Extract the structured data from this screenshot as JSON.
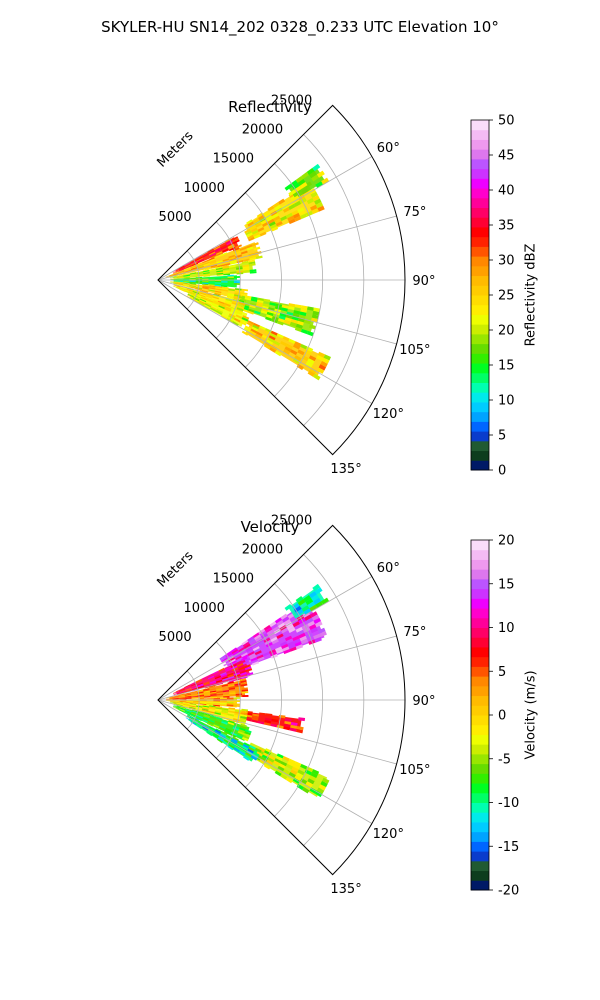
{
  "figure_title": "SKYLER-HU  SN14_202  0328_0.233 UTC Elevation 10°",
  "chart_data": [
    {
      "type": "heatmap",
      "projection": "polar-sector",
      "title": "Reflectivity",
      "range_label": "Meters",
      "range_ticks": [
        5000,
        10000,
        15000,
        20000,
        25000
      ],
      "range_tick_labels": [
        "5000",
        "10000",
        "15000",
        "20000",
        "25000"
      ],
      "range_max": 30000,
      "azimuth_range": [
        45,
        135
      ],
      "azimuth_ticks": [
        60,
        75,
        90,
        105,
        120,
        135
      ],
      "azimuth_tick_labels": [
        "60°",
        "75°",
        "90°",
        "105°",
        "120°",
        "135°"
      ],
      "grid": true,
      "colorbar": {
        "label": "Reflectivity dBZ",
        "vmin": 0,
        "vmax": 50,
        "ticks": [
          "0",
          "5",
          "10",
          "15",
          "20",
          "25",
          "30",
          "35",
          "40",
          "45",
          "50"
        ],
        "colors": [
          "#001a66",
          "#0d3d1e",
          "#205a32",
          "#0a3ccc",
          "#0066ff",
          "#00a3ff",
          "#00ccff",
          "#00eaea",
          "#00ffb0",
          "#00ff66",
          "#00ff22",
          "#33ee00",
          "#66dd00",
          "#99e600",
          "#ccee00",
          "#eeff00",
          "#ffee00",
          "#ffdd00",
          "#ffcc00",
          "#ffbb00",
          "#ffa000",
          "#ff8800",
          "#ff5500",
          "#ff2200",
          "#ff0000",
          "#ff0033",
          "#ff0066",
          "#ff0099",
          "#ff00cc",
          "#ee00ff",
          "#cc33ff",
          "#bb55ff",
          "#dd77ee",
          "#ee99ee",
          "#f4bbf4",
          "#f9ddf9"
        ]
      },
      "echo_regions": [
        {
          "az": [
            57,
            67
          ],
          "r": [
            12000,
            22000
          ],
          "value": 24
        },
        {
          "az": [
            54,
            60
          ],
          "r": [
            19000,
            24000
          ],
          "value": 18
        },
        {
          "az": [
            60,
            68
          ],
          "r": [
            2000,
            11000
          ],
          "value": 33
        },
        {
          "az": [
            68,
            78
          ],
          "r": [
            1000,
            13000
          ],
          "value": 26
        },
        {
          "az": [
            78,
            86
          ],
          "r": [
            1500,
            12000
          ],
          "value": 20
        },
        {
          "az": [
            86,
            96
          ],
          "r": [
            1500,
            10000
          ],
          "value": 15
        },
        {
          "az": [
            96,
            104
          ],
          "r": [
            1500,
            11000
          ],
          "value": 24
        },
        {
          "az": [
            100,
            110
          ],
          "r": [
            10000,
            20000
          ],
          "value": 19
        },
        {
          "az": [
            104,
            114
          ],
          "r": [
            2000,
            11000
          ],
          "value": 23
        },
        {
          "az": [
            114,
            122
          ],
          "r": [
            12000,
            23000
          ],
          "value": 25
        },
        {
          "az": [
            110,
            120
          ],
          "r": [
            4000,
            12000
          ],
          "value": 22
        }
      ]
    },
    {
      "type": "heatmap",
      "projection": "polar-sector",
      "title": "Velocity",
      "range_label": "Meters",
      "range_ticks": [
        5000,
        10000,
        15000,
        20000,
        25000
      ],
      "range_tick_labels": [
        "5000",
        "10000",
        "15000",
        "20000",
        "25000"
      ],
      "range_max": 30000,
      "azimuth_range": [
        45,
        135
      ],
      "azimuth_ticks": [
        60,
        75,
        90,
        105,
        120,
        135
      ],
      "azimuth_tick_labels": [
        "60°",
        "75°",
        "90°",
        "105°",
        "120°",
        "135°"
      ],
      "grid": true,
      "colorbar": {
        "label": "Velocity (m/s)",
        "vmin": -20,
        "vmax": 20,
        "ticks": [
          "-20",
          "-15",
          "-10",
          "-5",
          "0",
          "5",
          "10",
          "15",
          "20"
        ],
        "colors": [
          "#001a66",
          "#0d3d1e",
          "#205a32",
          "#0a3ccc",
          "#0066ff",
          "#00a3ff",
          "#00ccff",
          "#00eaea",
          "#00ffb0",
          "#00ff66",
          "#00ff22",
          "#33ee00",
          "#66dd00",
          "#99e600",
          "#ccee00",
          "#eeff00",
          "#ffee00",
          "#ffdd00",
          "#ffcc00",
          "#ffbb00",
          "#ffa000",
          "#ff8800",
          "#ff5500",
          "#ff2200",
          "#ff0000",
          "#ff0033",
          "#ff0066",
          "#ff0099",
          "#ff00cc",
          "#ee00ff",
          "#cc33ff",
          "#bb55ff",
          "#dd77ee",
          "#ee99ee",
          "#f4bbf4",
          "#f9ddf9"
        ]
      },
      "echo_regions": [
        {
          "az": [
            56,
            70
          ],
          "r": [
            9000,
            22000
          ],
          "value": 14
        },
        {
          "az": [
            54,
            60
          ],
          "r": [
            19000,
            24000
          ],
          "value": -11
        },
        {
          "az": [
            64,
            76
          ],
          "r": [
            2000,
            12000
          ],
          "value": 9
        },
        {
          "az": [
            76,
            88
          ],
          "r": [
            1000,
            11000
          ],
          "value": 4
        },
        {
          "az": [
            88,
            96
          ],
          "r": [
            1000,
            10000
          ],
          "value": 1
        },
        {
          "az": [
            97,
            103
          ],
          "r": [
            10000,
            18000
          ],
          "value": 7
        },
        {
          "az": [
            96,
            106
          ],
          "r": [
            1500,
            11000
          ],
          "value": -2
        },
        {
          "az": [
            106,
            116
          ],
          "r": [
            2000,
            12000
          ],
          "value": -7
        },
        {
          "az": [
            114,
            122
          ],
          "r": [
            12000,
            23000
          ],
          "value": -4
        },
        {
          "az": [
            116,
            124
          ],
          "r": [
            4000,
            14000
          ],
          "value": -10
        }
      ]
    }
  ]
}
